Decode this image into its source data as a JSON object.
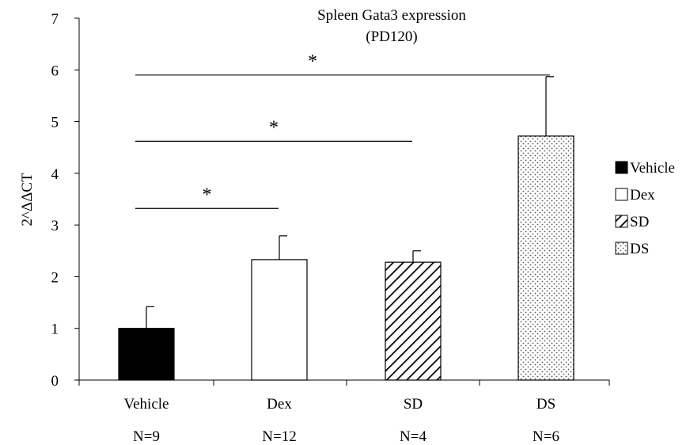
{
  "chart_data": {
    "type": "bar",
    "title": "Spleen Gata3 expression",
    "subtitle": "(PD120)",
    "ylabel": "2^ΔΔCT",
    "xlabel": "",
    "ylim": [
      0,
      7
    ],
    "yticks": [
      0,
      1,
      2,
      3,
      4,
      5,
      6,
      7
    ],
    "categories": [
      "Vehicle",
      "Dex",
      "SD",
      "DS"
    ],
    "n_labels": [
      "N=9",
      "N=12",
      "N=4",
      "N=6"
    ],
    "values": [
      1.0,
      2.33,
      2.28,
      4.72
    ],
    "errors": [
      0.42,
      0.46,
      0.22,
      1.15
    ],
    "fill_patterns": [
      "solid-black",
      "white",
      "diagonal-hatch",
      "dots"
    ],
    "legend": {
      "placement": "right",
      "entries": [
        "Vehicle",
        "Dex",
        "SD",
        "DS"
      ]
    },
    "significance": [
      {
        "from": "Vehicle",
        "to": "Dex",
        "level": 3.32,
        "label": "*"
      },
      {
        "from": "Vehicle",
        "to": "SD",
        "level": 4.62,
        "label": "*"
      },
      {
        "from": "Vehicle",
        "to": "DS",
        "level": 5.9,
        "label": "*"
      }
    ],
    "grid": false
  }
}
